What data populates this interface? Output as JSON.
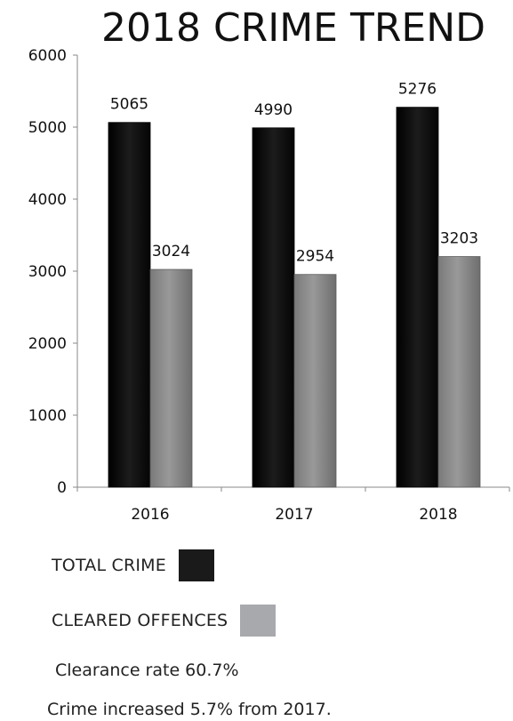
{
  "chart_data": {
    "type": "bar",
    "title": "2018 CRIME TREND",
    "categories": [
      "2016",
      "2017",
      "2018"
    ],
    "series": [
      {
        "name": "TOTAL CRIME",
        "values": [
          5065,
          4990,
          5276
        ],
        "color": "#0a0a0a"
      },
      {
        "name": "CLEARED OFFENCES",
        "values": [
          3024,
          2954,
          3203
        ],
        "color": "#8a8a8a"
      }
    ],
    "yticks": [
      "0",
      "1000",
      "2000",
      "3000",
      "4000",
      "5000",
      "6000"
    ],
    "ylim": [
      0,
      6000
    ],
    "grid": false,
    "legend_position": "bottom-left"
  },
  "legend": {
    "total_label": "TOTAL CRIME",
    "total_color": "#1a1a1a",
    "cleared_label": "CLEARED OFFENCES",
    "cleared_color": "#a8a9ad"
  },
  "notes": {
    "clearance_rate": "Clearance rate 60.7%",
    "crime_change": "Crime increased 5.7% from 2017."
  }
}
